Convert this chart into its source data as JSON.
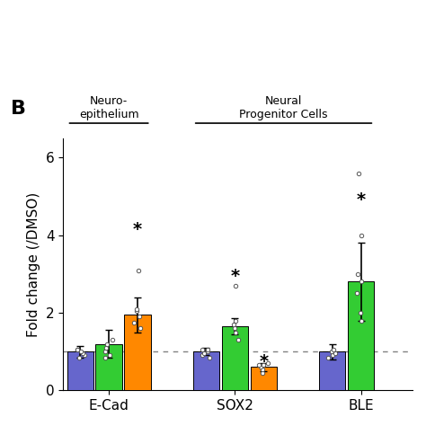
{
  "title": "B",
  "ylabel": "Fold change (/DMSO)",
  "ylim": [
    0,
    6.5
  ],
  "yticks": [
    0,
    2,
    4,
    6
  ],
  "categories": [
    "E-Cad",
    "SOX2",
    "BLE"
  ],
  "group_label_ne": "Neuro-\nepithelium",
  "group_label_npc": "Neural\nProgenitor Cells",
  "colors": [
    "#6666cc",
    "#33cc33",
    "#ff8800"
  ],
  "means_all": [
    [
      1.0,
      1.2,
      1.95
    ],
    [
      1.0,
      1.65,
      0.6
    ],
    [
      1.0,
      2.8,
      null
    ]
  ],
  "errors_all": [
    [
      0.15,
      0.35,
      0.45
    ],
    [
      0.1,
      0.2,
      0.1
    ],
    [
      0.2,
      1.0,
      null
    ]
  ],
  "scatter_data": [
    {
      "0": [
        0.85,
        0.9,
        0.95,
        1.0,
        1.05,
        1.05
      ],
      "1": [
        0.85,
        0.9,
        1.0,
        1.1,
        1.2,
        1.3
      ],
      "2": [
        1.6,
        1.75,
        1.9,
        2.05,
        2.1,
        3.1
      ]
    },
    {
      "0": [
        0.85,
        0.9,
        0.95,
        1.0,
        1.05,
        1.05
      ],
      "1": [
        1.3,
        1.5,
        1.6,
        1.7,
        1.8,
        2.7
      ],
      "2": [
        0.45,
        0.55,
        0.6,
        0.65,
        0.65,
        0.7
      ]
    },
    {
      "0": [
        0.85,
        0.9,
        0.95,
        1.0,
        1.05
      ],
      "1": [
        1.8,
        2.0,
        2.5,
        2.8,
        3.0,
        4.0,
        5.6
      ],
      "2": null
    }
  ],
  "group_centers": [
    1.0,
    2.1,
    3.2
  ],
  "bar_width": 0.25,
  "dotted_line_y": 1.0,
  "background_color": "#ffffff"
}
